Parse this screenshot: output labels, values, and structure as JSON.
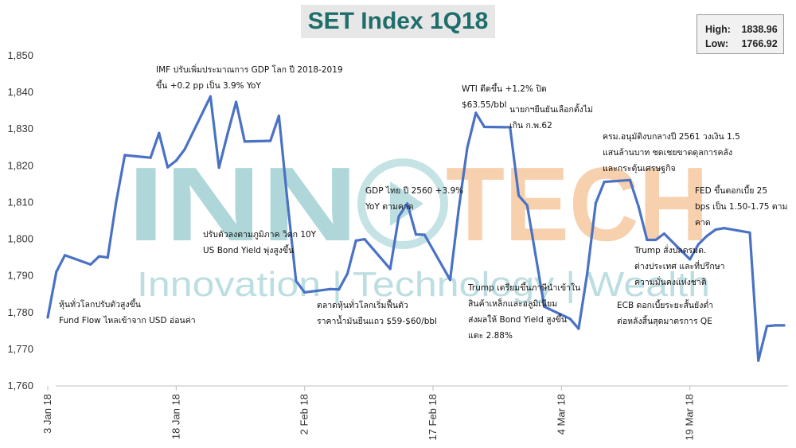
{
  "title": "SET Index 1Q18",
  "stats": {
    "high_label": "High:",
    "high_value": "1838.96",
    "low_label": "Low:",
    "low_value": "1766.92"
  },
  "watermark": {
    "word_left": "INN",
    "word_right": "TECH",
    "tagline": "Innovation | Technology | Wealth"
  },
  "colors": {
    "line": "#4a72c4",
    "title_text": "#1f6e6b",
    "watermark_teal": "#6fb8bd",
    "watermark_orange": "#f0a35e"
  },
  "annotations": [
    {
      "id": "ann-fund-flow",
      "lines": [
        "หุ้นทั่วโลกปรับตัวสูงขึ้น",
        "Fund Flow ไหลเข้าจาก USD อ่อนค่า"
      ]
    },
    {
      "id": "ann-imf",
      "lines": [
        "IMF ปรับเพิ่มประมาณการ GDP โลก ปี 2018-2019",
        "ขึ้น +0.2 pp เป็น 3.9% YoY"
      ]
    },
    {
      "id": "ann-us-bond",
      "lines": [
        "ปรับตัวลงตามภูมิภาค วิตก 10Y",
        "US Bond Yield พุ่งสูงขึ้น"
      ]
    },
    {
      "id": "ann-global-rebound",
      "lines": [
        "ตลาดหุ้นทั่วโลกเริ่มฟื้นตัว",
        "ราคาน้ำมันยืนแถว $59-$60/bbl"
      ]
    },
    {
      "id": "ann-gdp-thai",
      "lines": [
        "GDP ไทย ปี 2560 +3.9%",
        "YoY ตามคาด"
      ]
    },
    {
      "id": "ann-wti",
      "lines": [
        "WTI ดีดขึ้น +1.2% ปิด",
        "$63.55/bbl"
      ]
    },
    {
      "id": "ann-pm",
      "lines": [
        "นายกฯยืนยันเลือกตั้งไม่",
        "เกิน ก.พ.62"
      ]
    },
    {
      "id": "ann-trump-tariff",
      "lines": [
        "Trump เตรียมขึ้นภาษีนำเข้าใน",
        "สินค้าเหล็กและอลูมิเนียม",
        "ส่งผลให้ Bond Yield สูงขึ้น",
        "แตะ 2.88%"
      ]
    },
    {
      "id": "ann-budget",
      "lines": [
        "ครม.อนุมัติงบกลางปี 2561 วงเงิน 1.5",
        "แสนล้านบาท ชดเชยขาดดุลการคลัง",
        "และกระตุ้นเศรษฐกิจ"
      ]
    },
    {
      "id": "ann-fed",
      "lines": [
        "FED ขึ้นดอกเบี้ย 25",
        "bps เป็น 1.50-1.75 ตาม",
        "คาด"
      ]
    },
    {
      "id": "ann-trump-fire",
      "lines": [
        "Trump สั่งปลดรมต.",
        "ต่างประเทศ และที่ปรึกษา",
        "ความมั่นคงแห่งชาติ"
      ]
    },
    {
      "id": "ann-ecb",
      "lines": [
        "ECB ดอกเบี้ยระยะสั้นยังต่ำ",
        "ต่อหลังสิ้นสุดมาตรการ QE"
      ]
    }
  ],
  "chart_data": {
    "type": "line",
    "title": "SET Index 1Q18",
    "xlabel": "",
    "ylabel": "",
    "ylim": [
      1760,
      1850
    ],
    "yticks": [
      1760,
      1770,
      1780,
      1790,
      1800,
      1810,
      1820,
      1830,
      1840,
      1850
    ],
    "ytick_labels": [
      "1,760",
      "1,770",
      "1,780",
      "1,790",
      "1,800",
      "1,810",
      "1,820",
      "1,830",
      "1,840",
      "1,850"
    ],
    "xtick_labels": [
      "3 Jan 18",
      "18 Jan 18",
      "2 Feb 18",
      "17 Feb 18",
      "4 Mar 18",
      "19 Mar 18"
    ],
    "xtick_dates": [
      "2018-01-03",
      "2018-01-18",
      "2018-02-02",
      "2018-02-17",
      "2018-03-04",
      "2018-03-19"
    ],
    "grid": false,
    "series": [
      {
        "dates": [
          "2018-01-03",
          "2018-01-04",
          "2018-01-05",
          "2018-01-08",
          "2018-01-09",
          "2018-01-10",
          "2018-01-11",
          "2018-01-12",
          "2018-01-15",
          "2018-01-16",
          "2018-01-17",
          "2018-01-18",
          "2018-01-19",
          "2018-01-22",
          "2018-01-23",
          "2018-01-24",
          "2018-01-25",
          "2018-01-26",
          "2018-01-29",
          "2018-01-30",
          "2018-01-31",
          "2018-02-01",
          "2018-02-02",
          "2018-02-05",
          "2018-02-06",
          "2018-02-07",
          "2018-02-08",
          "2018-02-09",
          "2018-02-12",
          "2018-02-13",
          "2018-02-14",
          "2018-02-15",
          "2018-02-16",
          "2018-02-19",
          "2018-02-20",
          "2018-02-21",
          "2018-02-22",
          "2018-02-23",
          "2018-02-26",
          "2018-02-27",
          "2018-02-28",
          "2018-03-02",
          "2018-03-05",
          "2018-03-06",
          "2018-03-07",
          "2018-03-08",
          "2018-03-09",
          "2018-03-12",
          "2018-03-13",
          "2018-03-14",
          "2018-03-15",
          "2018-03-16",
          "2018-03-19",
          "2018-03-20",
          "2018-03-21",
          "2018-03-22",
          "2018-03-23",
          "2018-03-26",
          "2018-03-27",
          "2018-03-28",
          "2018-03-29",
          "2018-03-30"
        ],
        "values": [
          1778.7,
          1791.1,
          1795.6,
          1793.1,
          1795.3,
          1795.0,
          1810.2,
          1822.9,
          1822.2,
          1828.9,
          1819.6,
          1821.4,
          1824.5,
          1838.9,
          1819.5,
          1828.7,
          1837.4,
          1826.6,
          1826.8,
          1833.6,
          1810.2,
          1788.6,
          1785.5,
          1786.4,
          1786.3,
          1790.6,
          1799.6,
          1800.0,
          1791.9,
          1806.2,
          1809.7,
          1801.3,
          1801.2,
          1788.9,
          1808.2,
          1824.9,
          1834.4,
          1830.6,
          1830.5,
          1811.9,
          1809.2,
          1781.6,
          1778.3,
          1775.6,
          1790.5,
          1809.8,
          1815.6,
          1816.1,
          1808.9,
          1799.8,
          1799.8,
          1801.5,
          1794.5,
          1798.6,
          1800.9,
          1802.6,
          1803.0,
          1801.8,
          1766.9,
          1776.3,
          1776.5,
          1776.5
        ]
      }
    ]
  }
}
